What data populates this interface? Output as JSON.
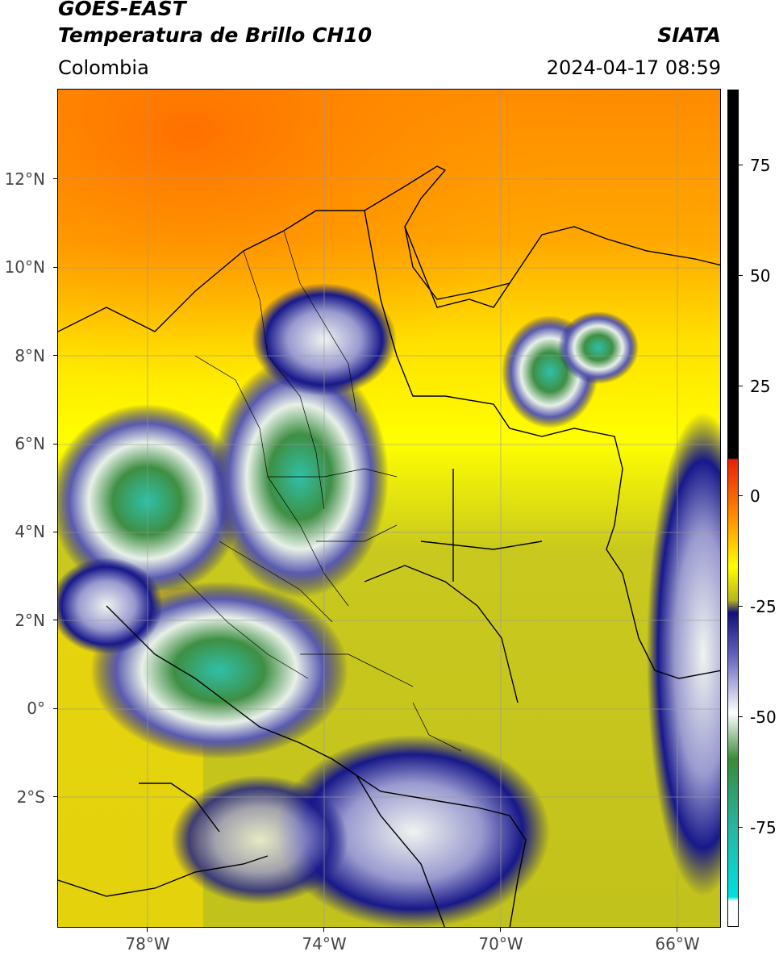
{
  "header": {
    "satellite": "GOES-EAST",
    "product": "Temperatura de Brillo CH10",
    "region": "Colombia",
    "agency": "SIATA",
    "datetime": "2024-04-17 08:59"
  },
  "map": {
    "lat_range": [
      -5,
      14
    ],
    "lon_range": [
      -80,
      -65
    ],
    "lat_ticks": [
      "12°N",
      "10°N",
      "8°N",
      "6°N",
      "4°N",
      "2°N",
      "0°",
      "2°S"
    ],
    "lon_ticks": [
      "78°W",
      "74°W",
      "70°W",
      "66°W"
    ],
    "gridlines": true
  },
  "colorbar": {
    "ticks": [
      "75",
      "50",
      "25",
      "0",
      "-25",
      "-50",
      "-75"
    ],
    "colors": {
      "warm_top": "#000000",
      "red": "#e8200a",
      "orange": "#ff8c00",
      "yellow": "#ffff00",
      "olive": "#b5b51e",
      "navy": "#10107a",
      "white": "#ffffff",
      "green": "#3a8a3a",
      "teal": "#28b4a0",
      "cyan": "#00e0e0"
    }
  }
}
